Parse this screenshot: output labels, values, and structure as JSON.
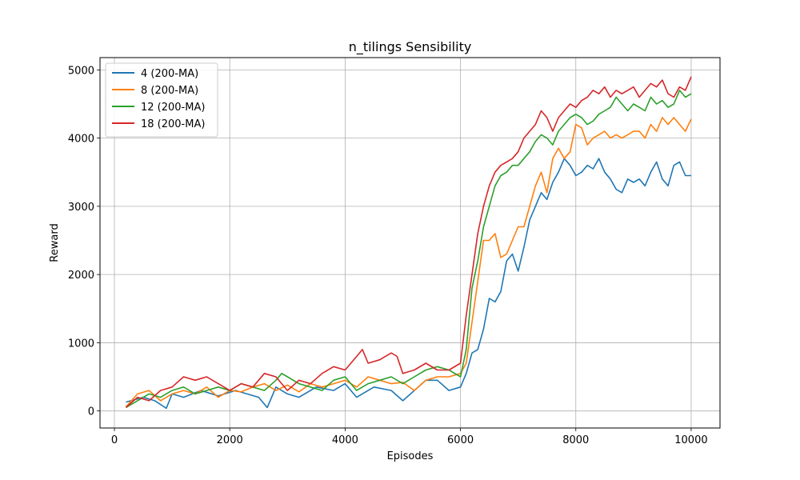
{
  "chart_data": {
    "type": "line",
    "title": "n_tilings Sensibility",
    "xlabel": "Episodes",
    "ylabel": "Reward",
    "xlim": [
      -250,
      10500
    ],
    "ylim": [
      -250,
      5180
    ],
    "xticks": [
      0,
      2000,
      4000,
      6000,
      8000,
      10000
    ],
    "yticks": [
      0,
      1000,
      2000,
      3000,
      4000,
      5000
    ],
    "grid": true,
    "legend_position": "top-left",
    "series": [
      {
        "name": "4 (200-MA)",
        "color": "#1f77b4",
        "x": [
          200,
          500,
          700,
          900,
          1000,
          1200,
          1500,
          1800,
          2100,
          2300,
          2500,
          2650,
          2800,
          3000,
          3200,
          3500,
          3800,
          4000,
          4200,
          4500,
          4800,
          5000,
          5200,
          5400,
          5600,
          5800,
          6000,
          6100,
          6200,
          6300,
          6400,
          6500,
          6600,
          6700,
          6800,
          6900,
          7000,
          7100,
          7200,
          7300,
          7400,
          7500,
          7600,
          7700,
          7800,
          7900,
          8000,
          8100,
          8200,
          8300,
          8400,
          8500,
          8600,
          8700,
          8800,
          8900,
          9000,
          9100,
          9200,
          9300,
          9400,
          9500,
          9600,
          9700,
          9800,
          9900,
          10000
        ],
        "values": [
          130,
          200,
          150,
          40,
          250,
          200,
          300,
          220,
          300,
          250,
          200,
          50,
          350,
          250,
          200,
          350,
          300,
          400,
          200,
          350,
          300,
          150,
          300,
          450,
          450,
          300,
          350,
          550,
          850,
          900,
          1200,
          1650,
          1600,
          1750,
          2200,
          2300,
          2050,
          2400,
          2800,
          3000,
          3200,
          3100,
          3350,
          3500,
          3700,
          3600,
          3450,
          3500,
          3600,
          3550,
          3700,
          3500,
          3400,
          3250,
          3200,
          3400,
          3350,
          3400,
          3300,
          3500,
          3650,
          3400,
          3300,
          3600,
          3650,
          3450,
          3450
        ]
      },
      {
        "name": "8 (200-MA)",
        "color": "#ff7f0e",
        "x": [
          200,
          400,
          600,
          800,
          1000,
          1200,
          1400,
          1600,
          1800,
          2000,
          2200,
          2400,
          2600,
          2800,
          3000,
          3200,
          3400,
          3600,
          3800,
          4000,
          4200,
          4400,
          4600,
          4800,
          5000,
          5200,
          5400,
          5600,
          5800,
          6000,
          6100,
          6200,
          6300,
          6400,
          6500,
          6600,
          6700,
          6800,
          6900,
          7000,
          7100,
          7200,
          7300,
          7400,
          7500,
          7600,
          7700,
          7800,
          7900,
          8000,
          8100,
          8200,
          8300,
          8400,
          8500,
          8600,
          8700,
          8800,
          8900,
          9000,
          9100,
          9200,
          9300,
          9400,
          9500,
          9600,
          9700,
          9800,
          9900,
          10000
        ],
        "values": [
          60,
          250,
          300,
          150,
          250,
          300,
          250,
          350,
          200,
          300,
          280,
          350,
          400,
          300,
          380,
          280,
          400,
          350,
          400,
          450,
          350,
          500,
          450,
          400,
          420,
          300,
          450,
          500,
          500,
          550,
          700,
          1300,
          1900,
          2500,
          2500,
          2600,
          2250,
          2300,
          2500,
          2700,
          2700,
          3000,
          3300,
          3500,
          3200,
          3700,
          3850,
          3700,
          3800,
          4200,
          4150,
          3900,
          4000,
          4050,
          4100,
          4000,
          4050,
          4000,
          4050,
          4100,
          4100,
          4000,
          4200,
          4100,
          4300,
          4200,
          4300,
          4200,
          4100,
          4280
        ]
      },
      {
        "name": "12 (200-MA)",
        "color": "#2ca02c",
        "x": [
          200,
          400,
          600,
          800,
          1000,
          1200,
          1400,
          1600,
          1800,
          2000,
          2200,
          2400,
          2600,
          2800,
          2900,
          3000,
          3200,
          3400,
          3600,
          3800,
          4000,
          4200,
          4400,
          4600,
          4800,
          5000,
          5200,
          5400,
          5600,
          5800,
          6000,
          6100,
          6200,
          6300,
          6400,
          6500,
          6600,
          6700,
          6800,
          6900,
          7000,
          7100,
          7200,
          7300,
          7400,
          7500,
          7600,
          7700,
          7800,
          7900,
          8000,
          8100,
          8200,
          8300,
          8400,
          8500,
          8600,
          8700,
          8800,
          8900,
          9000,
          9100,
          9200,
          9300,
          9400,
          9500,
          9600,
          9700,
          9800,
          9900,
          10000
        ],
        "values": [
          50,
          150,
          250,
          200,
          300,
          350,
          250,
          300,
          350,
          300,
          400,
          350,
          300,
          450,
          550,
          500,
          400,
          350,
          300,
          450,
          500,
          300,
          400,
          450,
          500,
          400,
          500,
          600,
          650,
          600,
          500,
          900,
          1800,
          2200,
          2700,
          3000,
          3300,
          3450,
          3500,
          3600,
          3600,
          3700,
          3800,
          3950,
          4050,
          4000,
          3900,
          4100,
          4200,
          4300,
          4350,
          4300,
          4200,
          4250,
          4350,
          4400,
          4450,
          4600,
          4500,
          4400,
          4500,
          4450,
          4400,
          4600,
          4500,
          4550,
          4450,
          4500,
          4700,
          4600,
          4650
        ]
      },
      {
        "name": "18 (200-MA)",
        "color": "#d62728",
        "x": [
          200,
          400,
          600,
          800,
          1000,
          1200,
          1400,
          1600,
          1800,
          2000,
          2200,
          2400,
          2600,
          2800,
          3000,
          3200,
          3400,
          3600,
          3800,
          4000,
          4200,
          4300,
          4400,
          4600,
          4800,
          4900,
          5000,
          5200,
          5400,
          5600,
          5800,
          6000,
          6100,
          6200,
          6300,
          6400,
          6500,
          6600,
          6700,
          6800,
          6900,
          7000,
          7100,
          7200,
          7300,
          7400,
          7500,
          7600,
          7700,
          7800,
          7900,
          8000,
          8100,
          8200,
          8300,
          8400,
          8500,
          8600,
          8700,
          8800,
          8900,
          9000,
          9100,
          9200,
          9300,
          9400,
          9500,
          9600,
          9700,
          9800,
          9900,
          10000
        ],
        "values": [
          50,
          200,
          150,
          300,
          350,
          500,
          450,
          500,
          400,
          300,
          400,
          350,
          550,
          500,
          300,
          450,
          400,
          550,
          650,
          600,
          800,
          900,
          700,
          750,
          850,
          800,
          550,
          600,
          700,
          600,
          600,
          700,
          1400,
          2000,
          2600,
          3000,
          3300,
          3500,
          3600,
          3650,
          3700,
          3800,
          4000,
          4100,
          4200,
          4400,
          4300,
          4100,
          4300,
          4400,
          4500,
          4450,
          4550,
          4600,
          4700,
          4650,
          4750,
          4600,
          4700,
          4650,
          4700,
          4750,
          4600,
          4700,
          4800,
          4750,
          4850,
          4650,
          4600,
          4750,
          4700,
          4900
        ]
      }
    ]
  }
}
